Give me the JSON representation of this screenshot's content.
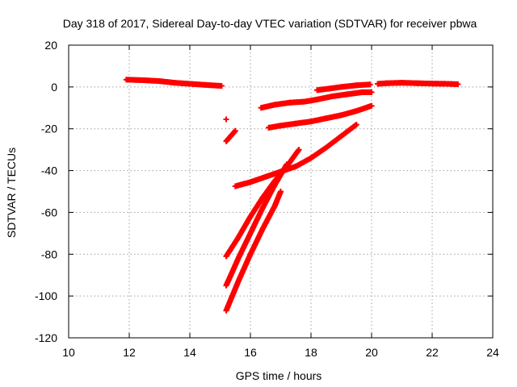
{
  "chart_data": {
    "type": "scatter",
    "title": "Day 318 of 2017, Sidereal Day-to-day VTEC variation (SDTVAR) for receiver pbwa",
    "xlabel": "GPS time / hours",
    "ylabel": "SDTVAR / TECUs",
    "xlim": [
      10,
      24
    ],
    "ylim": [
      -120,
      20
    ],
    "xticks": [
      10,
      12,
      14,
      16,
      18,
      20,
      22,
      24
    ],
    "yticks": [
      20,
      0,
      -20,
      -40,
      -60,
      -80,
      -100,
      -120
    ],
    "grid": true,
    "legend": "none",
    "marker": "plus",
    "color": "#ff0000",
    "series": [
      {
        "x": [
          11.9,
          12.5,
          13.0,
          13.5,
          14.0,
          14.5,
          15.05
        ],
        "y": [
          3.5,
          3.2,
          2.8,
          2.0,
          1.5,
          1.0,
          0.5
        ]
      },
      {
        "x": [
          15.2
        ],
        "y": [
          -15.5
        ]
      },
      {
        "x": [
          15.2,
          15.35,
          15.5
        ],
        "y": [
          -26,
          -23.5,
          -21
        ]
      },
      {
        "x": [
          15.5,
          16.0,
          16.5,
          17.0,
          17.5,
          18.0,
          18.5,
          19.0,
          19.5
        ],
        "y": [
          -47.5,
          -45.5,
          -43,
          -40.5,
          -38,
          -34,
          -29,
          -23.5,
          -18
        ]
      },
      {
        "x": [
          16.6,
          17.0,
          17.5,
          18.0,
          18.5,
          19.0,
          19.5,
          20.0
        ],
        "y": [
          -19.5,
          -18.5,
          -17.5,
          -16.5,
          -15,
          -13.5,
          -11.5,
          -9
        ]
      },
      {
        "x": [
          16.35,
          16.8,
          17.3,
          17.8,
          18.2,
          18.7,
          19.2,
          19.7,
          20.0
        ],
        "y": [
          -10,
          -8.5,
          -7.5,
          -7,
          -6,
          -4.5,
          -3.5,
          -2.5,
          -2.5
        ]
      },
      {
        "x": [
          18.2,
          18.6,
          19.0,
          19.5,
          19.95
        ],
        "y": [
          -1.5,
          -0.8,
          0.0,
          0.8,
          1.2
        ]
      },
      {
        "x": [
          20.2,
          20.5,
          21.0,
          21.5,
          22.0,
          22.5,
          22.85
        ],
        "y": [
          1.5,
          1.8,
          2.0,
          1.8,
          1.6,
          1.5,
          1.3
        ]
      },
      {
        "x": [
          15.2,
          15.6,
          16.0,
          16.4,
          16.8,
          17.2,
          17.6
        ],
        "y": [
          -81,
          -72,
          -62,
          -53,
          -45,
          -38,
          -30
        ]
      },
      {
        "x": [
          15.2,
          15.6,
          16.0,
          16.4,
          16.8,
          17.2
        ],
        "y": [
          -95,
          -82,
          -70,
          -58,
          -47,
          -37
        ]
      },
      {
        "x": [
          15.2,
          15.6,
          16.0,
          16.4,
          16.8,
          17.0
        ],
        "y": [
          -107,
          -93,
          -80,
          -68,
          -57,
          -50
        ]
      }
    ]
  }
}
